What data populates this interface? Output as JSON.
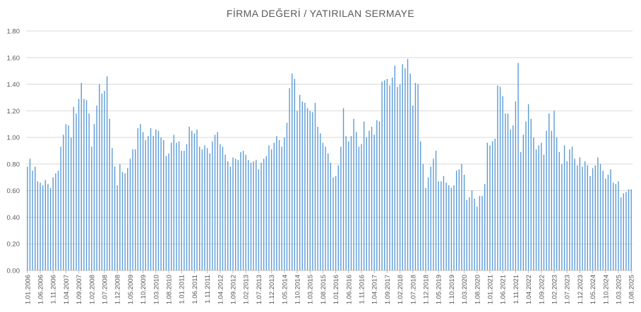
{
  "chart_data": {
    "type": "bar",
    "title": "FİRMA DEĞERİ / YATIRILAN SERMAYE",
    "xlabel": "",
    "ylabel": "",
    "ylim": [
      0,
      1.8
    ],
    "yticks": [
      "0.00",
      "0.20",
      "0.40",
      "0.60",
      "0.80",
      "1.00",
      "1.20",
      "1.40",
      "1.60",
      "1.80"
    ],
    "grid": true,
    "legend": "none",
    "color": "#5B9BD5",
    "tick_labels": [
      "1.01.2006",
      "1.06.2006",
      "1.11.2006",
      "1.04.2007",
      "1.09.2007",
      "1.02.2008",
      "1.07.2008",
      "1.12.2008",
      "1.05.2009",
      "1.10.2009",
      "1.03.2010",
      "1.08.2010",
      "1.01.2011",
      "1.06.2011",
      "1.11.2011",
      "1.04.2012",
      "1.09.2012",
      "1.02.2013",
      "1.07.2013",
      "1.12.2013",
      "1.05.2014",
      "1.10.2014",
      "1.03.2015",
      "1.08.2015",
      "1.01.2016",
      "1.06.2016",
      "1.11.2016",
      "1.04.2017",
      "1.09.2017",
      "1.02.2018",
      "1.07.2018",
      "1.12.2018",
      "1.05.2019",
      "1.10.2019",
      "1.03.2020",
      "1.08.2020",
      "1.01.2021",
      "1.06.2021",
      "1.11.2021",
      "1.04.2022",
      "1.09.2022",
      "1.02.2023",
      "1.07.2023",
      "1.12.2023",
      "1.05.2024",
      "1.10.2024",
      "1.03.2025",
      "1.08.2025"
    ],
    "x_start": "2006-01",
    "x_end": "2025-08",
    "values": [
      0.78,
      0.84,
      0.75,
      0.78,
      0.67,
      0.66,
      0.64,
      0.68,
      0.65,
      0.62,
      0.7,
      0.73,
      0.75,
      0.93,
      1.02,
      1.1,
      1.09,
      1.0,
      1.23,
      1.18,
      1.29,
      1.41,
      1.29,
      1.28,
      1.18,
      0.93,
      1.1,
      1.24,
      1.4,
      1.33,
      1.35,
      1.46,
      1.14,
      0.92,
      0.78,
      0.64,
      0.8,
      0.74,
      0.73,
      0.77,
      0.84,
      0.91,
      0.91,
      1.07,
      1.1,
      1.04,
      0.98,
      1.01,
      1.07,
      1.01,
      1.06,
      1.05,
      1.0,
      0.98,
      0.86,
      0.88,
      0.96,
      1.02,
      0.96,
      0.97,
      0.9,
      0.9,
      0.95,
      1.08,
      1.05,
      1.03,
      1.06,
      0.93,
      0.91,
      0.94,
      0.92,
      0.88,
      0.97,
      1.02,
      1.04,
      0.95,
      0.93,
      0.87,
      0.82,
      0.78,
      0.85,
      0.84,
      0.83,
      0.89,
      0.9,
      0.87,
      0.83,
      0.81,
      0.82,
      0.83,
      0.76,
      0.81,
      0.84,
      0.86,
      0.94,
      0.91,
      0.96,
      1.01,
      0.98,
      0.93,
      1.0,
      1.11,
      1.37,
      1.48,
      1.44,
      1.2,
      1.32,
      1.27,
      1.26,
      1.22,
      1.2,
      1.19,
      1.26,
      1.08,
      1.03,
      0.96,
      0.93,
      0.88,
      0.81,
      0.7,
      0.71,
      0.79,
      0.93,
      1.22,
      1.01,
      0.97,
      1.01,
      1.14,
      1.04,
      0.93,
      0.95,
      1.12,
      1.0,
      1.05,
      1.08,
      1.02,
      1.13,
      1.12,
      1.42,
      1.43,
      1.44,
      1.39,
      1.45,
      1.54,
      1.38,
      1.4,
      1.55,
      1.52,
      1.59,
      1.48,
      1.24,
      1.41,
      1.4,
      0.97,
      0.8,
      0.62,
      0.7,
      0.78,
      0.84,
      0.9,
      0.67,
      0.67,
      0.71,
      0.66,
      0.64,
      0.62,
      0.64,
      0.75,
      0.76,
      0.8,
      0.72,
      0.53,
      0.55,
      0.6,
      0.54,
      0.48,
      0.56,
      0.56,
      0.65,
      0.96,
      0.94,
      0.97,
      0.99,
      1.39,
      1.38,
      1.31,
      1.18,
      1.18,
      1.06,
      1.09,
      1.27,
      1.56,
      0.89,
      1.02,
      1.12,
      1.25,
      1.14,
      1.0,
      0.91,
      0.94,
      0.96,
      0.87,
      1.05,
      1.18,
      1.05,
      1.2,
      1.0,
      0.89,
      0.8,
      0.94,
      0.82,
      0.91,
      0.93,
      0.84,
      0.79,
      0.85,
      0.78,
      0.82,
      0.79,
      0.71,
      0.77,
      0.79,
      0.85,
      0.8,
      0.75,
      0.69,
      0.72,
      0.76,
      0.66,
      0.65,
      0.67,
      0.55,
      0.58,
      0.59,
      0.61,
      0.61
    ]
  }
}
